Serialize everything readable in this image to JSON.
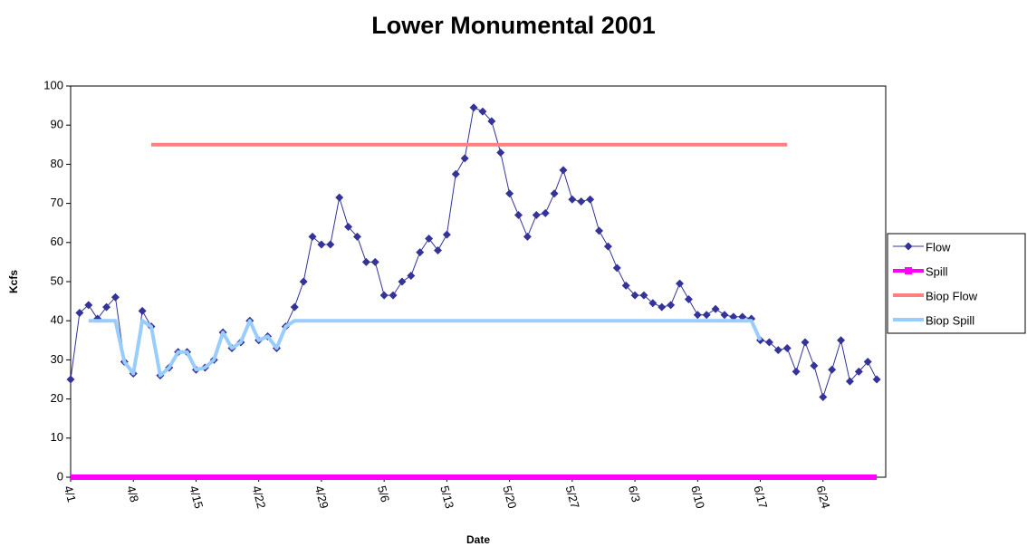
{
  "chart_data": {
    "type": "line",
    "title": "Lower Monumental 2001",
    "x_label": "Date",
    "y_label": "Kcfs",
    "categories": [
      "4/1",
      null,
      null,
      null,
      null,
      null,
      null,
      "4/8",
      null,
      null,
      null,
      null,
      null,
      null,
      "4/15",
      null,
      null,
      null,
      null,
      null,
      null,
      "4/22",
      null,
      null,
      null,
      null,
      null,
      null,
      "4/29",
      null,
      null,
      null,
      null,
      null,
      null,
      "5/6",
      null,
      null,
      null,
      null,
      null,
      null,
      "5/13",
      null,
      null,
      null,
      null,
      null,
      null,
      "5/20",
      null,
      null,
      null,
      null,
      null,
      null,
      "5/27",
      null,
      null,
      null,
      null,
      null,
      null,
      "6/3",
      null,
      null,
      null,
      null,
      null,
      null,
      "6/10",
      null,
      null,
      null,
      null,
      null,
      null,
      "6/17",
      null,
      null,
      null,
      null,
      null,
      null,
      "6/24",
      null,
      null,
      null,
      null,
      null,
      null
    ],
    "series": [
      {
        "name": "Flow",
        "color": "#333399",
        "marker": "diamond",
        "width": 1,
        "values": [
          25,
          42,
          44,
          40.5,
          43.5,
          46,
          29.5,
          26.5,
          42.5,
          38.5,
          26,
          28,
          32,
          32,
          27.5,
          28,
          30,
          37,
          33,
          34.5,
          40,
          35,
          36,
          33,
          38.5,
          43.5,
          50,
          61.5,
          59.5,
          59.5,
          71.5,
          64,
          61.5,
          55,
          55,
          46.5,
          46.5,
          50,
          51.5,
          57.5,
          61,
          58,
          62,
          77.5,
          81.5,
          94.5,
          93.5,
          91,
          83,
          72.5,
          67,
          61.5,
          67,
          67.5,
          72.5,
          78.5,
          71,
          70.5,
          71,
          63,
          59,
          53.5,
          49,
          46.5,
          46.5,
          44.5,
          43.5,
          44,
          49.5,
          45.5,
          41.5,
          41.5,
          43,
          41.5,
          41,
          41,
          40.5,
          35,
          34.5,
          32.5,
          33,
          27,
          34.5,
          28.5,
          20.5,
          27.5,
          35,
          24.5,
          27,
          29.5,
          25
        ]
      },
      {
        "name": "Spill",
        "color": "#ff00ff",
        "marker": "square",
        "width": 6,
        "values": [
          0,
          0,
          0,
          0,
          0,
          0,
          0,
          0,
          0,
          0,
          0,
          0,
          0,
          0,
          0,
          0,
          0,
          0,
          0,
          0,
          0,
          0,
          0,
          0,
          0,
          0,
          0,
          0,
          0,
          0,
          0,
          0,
          0,
          0,
          0,
          0,
          0,
          0,
          0,
          0,
          0,
          0,
          0,
          0,
          0,
          0,
          0,
          0,
          0,
          0,
          0,
          0,
          0,
          0,
          0,
          0,
          0,
          0,
          0,
          0,
          0,
          0,
          0,
          0,
          0,
          0,
          0,
          0,
          0,
          0,
          0,
          0,
          0,
          0,
          0,
          0,
          0,
          0,
          0,
          0,
          0,
          0,
          0,
          0,
          0,
          0,
          0,
          0,
          0,
          0,
          0
        ]
      },
      {
        "name": "Biop Flow",
        "color": "#ff8080",
        "marker": "none",
        "width": 4,
        "values": [
          null,
          null,
          null,
          null,
          null,
          null,
          null,
          null,
          null,
          85,
          85,
          85,
          85,
          85,
          85,
          85,
          85,
          85,
          85,
          85,
          85,
          85,
          85,
          85,
          85,
          85,
          85,
          85,
          85,
          85,
          85,
          85,
          85,
          85,
          85,
          85,
          85,
          85,
          85,
          85,
          85,
          85,
          85,
          85,
          85,
          85,
          85,
          85,
          85,
          85,
          85,
          85,
          85,
          85,
          85,
          85,
          85,
          85,
          85,
          85,
          85,
          85,
          85,
          85,
          85,
          85,
          85,
          85,
          85,
          85,
          85,
          85,
          85,
          85,
          85,
          85,
          85,
          85,
          85,
          85,
          85,
          null,
          null,
          null,
          null,
          null,
          null,
          null,
          null,
          null,
          null
        ]
      },
      {
        "name": "Biop Spill",
        "color": "#99ccff",
        "marker": "none",
        "width": 4,
        "values": [
          null,
          null,
          40,
          40,
          40,
          40,
          29.5,
          26.5,
          40,
          38.5,
          26,
          28,
          32,
          32,
          27.5,
          28,
          30,
          37,
          33,
          34.5,
          40,
          35,
          36,
          33,
          38.5,
          40,
          40,
          40,
          40,
          40,
          40,
          40,
          40,
          40,
          40,
          40,
          40,
          40,
          40,
          40,
          40,
          40,
          40,
          40,
          40,
          40,
          40,
          40,
          40,
          40,
          40,
          40,
          40,
          40,
          40,
          40,
          40,
          40,
          40,
          40,
          40,
          40,
          40,
          40,
          40,
          40,
          40,
          40,
          40,
          40,
          40,
          40,
          40,
          40,
          40,
          40,
          40,
          35,
          null,
          null,
          null,
          null,
          null,
          null,
          null,
          null,
          null,
          null,
          null,
          null,
          null
        ]
      }
    ],
    "ylim": [
      0,
      100
    ],
    "yticks": [
      0,
      10,
      20,
      30,
      40,
      50,
      60,
      70,
      80,
      90,
      100
    ],
    "grid": false,
    "legend": "right"
  }
}
